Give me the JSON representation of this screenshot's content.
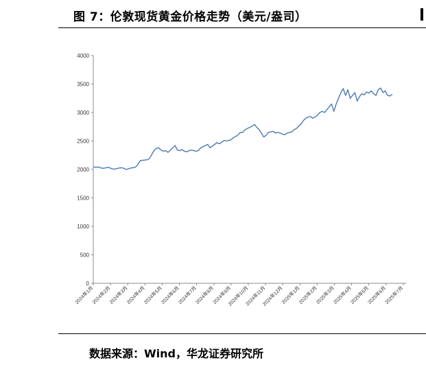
{
  "header": {
    "title": "图 7：伦敦现货黄金价格走势（美元/盎司）"
  },
  "footer": {
    "source": "数据来源：Wind，华龙证券研究所"
  },
  "chart_data": {
    "type": "line",
    "title": "图 7：伦敦现货黄金价格走势（美元/盎司）",
    "xlabel": "",
    "ylabel": "",
    "ylim": [
      0,
      4000
    ],
    "y_ticks": [
      0,
      500,
      1000,
      1500,
      2000,
      2500,
      3000,
      3500,
      4000
    ],
    "x_ticks": [
      "2024年1月",
      "2024年2月",
      "2024年3月",
      "2024年4月",
      "2024年5月",
      "2024年6月",
      "2024年7月",
      "2024年8月",
      "2024年9月",
      "2024年10月",
      "2024年11月",
      "2024年12月",
      "2025年1月",
      "2025年2月",
      "2025年3月",
      "2025年4月",
      "2025年5月",
      "2025年6月",
      "2025年7月"
    ],
    "grid": false,
    "legend": "none",
    "line_color": "#4a78b5",
    "series": [
      {
        "values": [
          2050,
          2035,
          2045,
          2030,
          2020,
          2025,
          2035,
          2030,
          2010,
          2005,
          2015,
          2025,
          2030,
          2020,
          2000,
          2010,
          2025,
          2030,
          2040,
          2080,
          2150,
          2160,
          2165,
          2170,
          2190,
          2260,
          2330,
          2370,
          2380,
          2340,
          2320,
          2330,
          2300,
          2340,
          2380,
          2420,
          2340,
          2330,
          2350,
          2320,
          2310,
          2330,
          2340,
          2330,
          2320,
          2330,
          2380,
          2400,
          2420,
          2440,
          2380,
          2410,
          2440,
          2470,
          2450,
          2480,
          2510,
          2500,
          2510,
          2520,
          2560,
          2580,
          2610,
          2650,
          2650,
          2700,
          2720,
          2740,
          2760,
          2790,
          2740,
          2700,
          2640,
          2570,
          2600,
          2650,
          2660,
          2670,
          2640,
          2650,
          2640,
          2620,
          2610,
          2640,
          2650,
          2660,
          2700,
          2720,
          2760,
          2800,
          2860,
          2900,
          2920,
          2930,
          2900,
          2920,
          2950,
          3000,
          3020,
          3000,
          3050,
          3100,
          3150,
          3020,
          3150,
          3250,
          3350,
          3420,
          3300,
          3400,
          3250,
          3300,
          3350,
          3200,
          3280,
          3330,
          3310,
          3360,
          3340,
          3380,
          3330,
          3300,
          3400,
          3430,
          3350,
          3380,
          3300,
          3290,
          3320
        ]
      }
    ]
  }
}
